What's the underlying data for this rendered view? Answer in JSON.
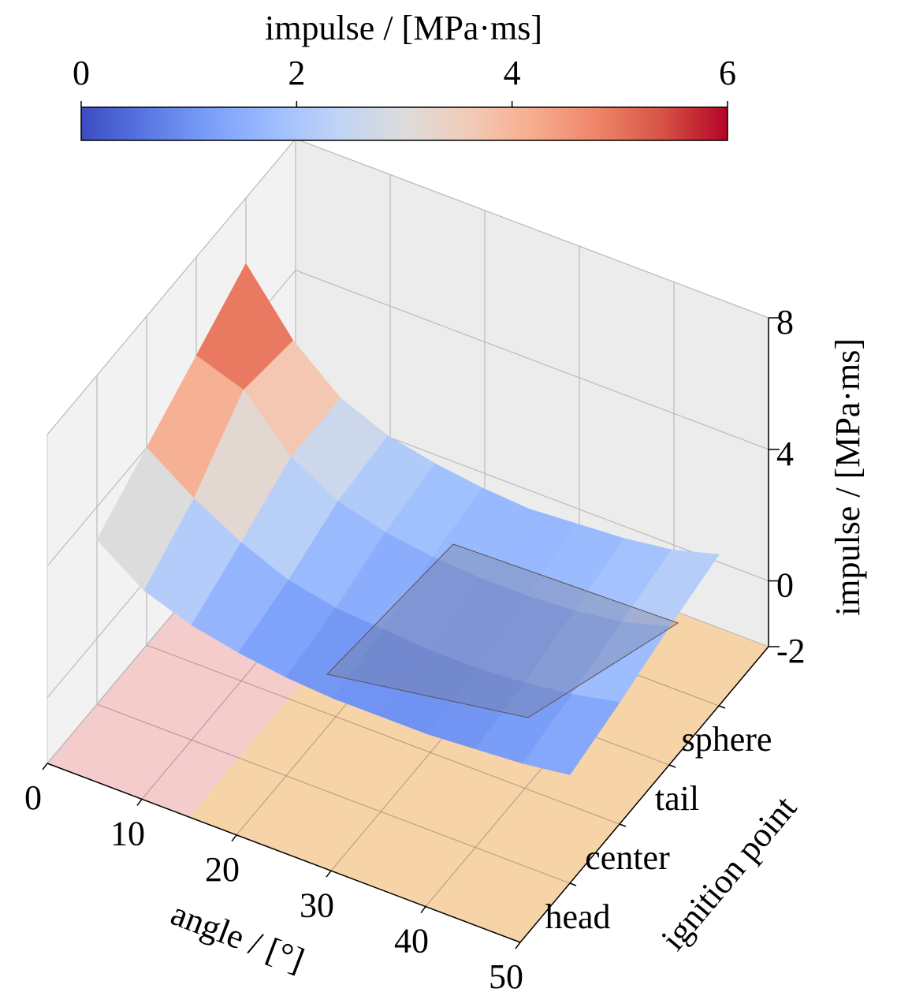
{
  "chart_data": {
    "type": "surface3d",
    "colorbar_label": "impulse / [MPa·ms]",
    "clim": [
      0,
      6
    ],
    "cticks": [
      0,
      2,
      4,
      6
    ],
    "colormap": [
      "#3b4cc0",
      "#5977e3",
      "#7b9ff9",
      "#9ebeff",
      "#c0d4f5",
      "#dddcdc",
      "#f2cbb7",
      "#f7ac8e",
      "#ee8468",
      "#d65244",
      "#b40426"
    ],
    "xlabel": "angle / [°]",
    "ylabel": "ignition point",
    "zlabel": "impulse / [MPa·ms]",
    "xlim": [
      0,
      50
    ],
    "xticks": [
      0,
      10,
      20,
      30,
      40,
      50
    ],
    "categories": [
      "head",
      "center",
      "tail",
      "sphere"
    ],
    "zlim": [
      -2,
      8
    ],
    "zticks": [
      -2,
      0,
      4,
      8
    ],
    "x": [
      0,
      5,
      10,
      15,
      20,
      25,
      30,
      35,
      40,
      45,
      50
    ],
    "z": [
      [
        3.0,
        2.0,
        1.5,
        1.2,
        1.0,
        0.9,
        0.9,
        0.9,
        1.0,
        1.1,
        1.3
      ],
      [
        4.0,
        3.0,
        2.2,
        1.6,
        1.3,
        1.2,
        1.1,
        1.1,
        1.2,
        1.4,
        1.7
      ],
      [
        5.0,
        4.5,
        3.0,
        2.2,
        1.8,
        1.6,
        1.5,
        1.5,
        1.6,
        1.8,
        2.2
      ],
      [
        6.0,
        4.2,
        3.0,
        2.4,
        2.1,
        1.9,
        1.8,
        1.9,
        2.0,
        2.2,
        2.6
      ]
    ]
  }
}
